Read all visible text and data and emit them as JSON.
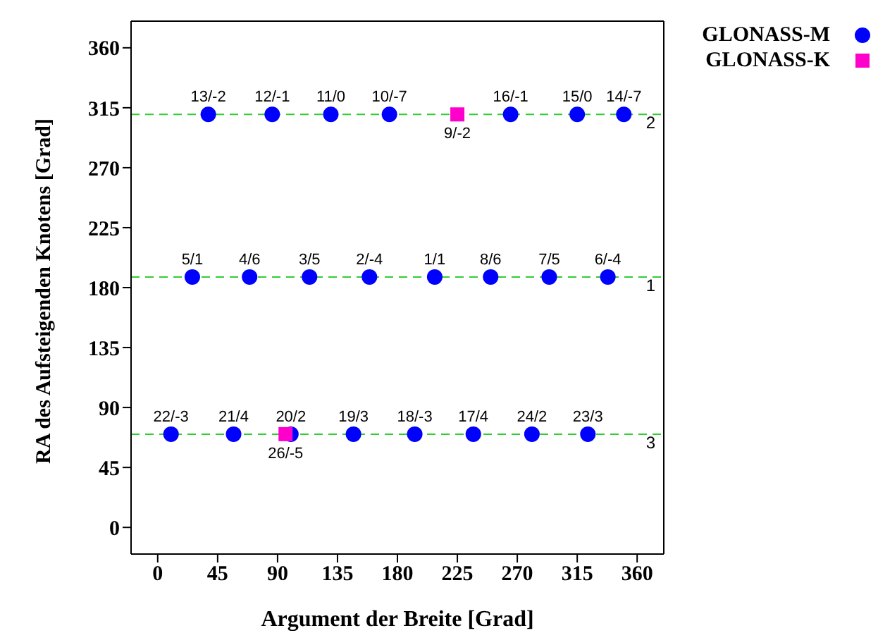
{
  "chart_data": {
    "type": "scatter",
    "xlabel": "Argument der Breite [Grad]",
    "ylabel": "RA des Aufsteigenden Knotens [Grad]",
    "xlim": [
      -20,
      380
    ],
    "ylim": [
      -20,
      380
    ],
    "xticks": [
      0,
      45,
      90,
      135,
      180,
      225,
      270,
      315,
      360
    ],
    "yticks": [
      0,
      45,
      90,
      135,
      180,
      225,
      270,
      315,
      360
    ],
    "grid": false,
    "legend": "top right",
    "marker": "circle",
    "series": [
      {
        "name": "GLONASS-M",
        "color": "#0000ff",
        "x": [
          38,
          86,
          130,
          174,
          265,
          315,
          350,
          26,
          69,
          114,
          159,
          208,
          250,
          294,
          338,
          10,
          57,
          100,
          147,
          193,
          237,
          281,
          323
        ],
        "values": [
          310,
          310,
          310,
          310,
          310,
          310,
          310,
          188,
          188,
          188,
          188,
          188,
          188,
          188,
          188,
          70,
          70,
          70,
          70,
          70,
          70,
          70,
          70
        ]
      },
      {
        "name": "GLONASS-K",
        "color": "#ff00cc",
        "marker": "square",
        "x": [
          225,
          96
        ],
        "values": [
          310,
          70
        ]
      }
    ],
    "ref_lines": [
      {
        "axis": "y",
        "value": 310,
        "color": "#33cc33",
        "line_style": "dashed"
      },
      {
        "axis": "y",
        "value": 188,
        "color": "#33cc33",
        "line_style": "dashed"
      },
      {
        "axis": "y",
        "value": 70,
        "color": "#33cc33",
        "line_style": "dashed"
      }
    ],
    "annotations": [
      {
        "text": "2",
        "y": 310
      },
      {
        "text": "1",
        "y": 188
      },
      {
        "text": "3",
        "y": 70
      },
      {
        "text": "13/-2",
        "x": 38,
        "y": 310
      },
      {
        "text": "12/-1",
        "x": 86,
        "y": 310
      },
      {
        "text": "11/0",
        "x": 130,
        "y": 310
      },
      {
        "text": "10/-7",
        "x": 174,
        "y": 310
      },
      {
        "text": "9/-2",
        "x": 225,
        "y": 310
      },
      {
        "text": "16/-1",
        "x": 265,
        "y": 310
      },
      {
        "text": "15/0",
        "x": 315,
        "y": 310
      },
      {
        "text": "14/-7",
        "x": 350,
        "y": 310
      },
      {
        "text": "5/1",
        "x": 26,
        "y": 188
      },
      {
        "text": "4/6",
        "x": 69,
        "y": 188
      },
      {
        "text": "3/5",
        "x": 114,
        "y": 188
      },
      {
        "text": "2/-4",
        "x": 159,
        "y": 188
      },
      {
        "text": "1/1",
        "x": 208,
        "y": 188
      },
      {
        "text": "8/6",
        "x": 250,
        "y": 188
      },
      {
        "text": "7/5",
        "x": 294,
        "y": 188
      },
      {
        "text": "6/-4",
        "x": 338,
        "y": 188
      },
      {
        "text": "22/-3",
        "x": 10,
        "y": 70
      },
      {
        "text": "21/4",
        "x": 57,
        "y": 70
      },
      {
        "text": "20/2",
        "x": 100,
        "y": 70
      },
      {
        "text": "26/-5",
        "x": 96,
        "y": 70
      },
      {
        "text": "19/3",
        "x": 147,
        "y": 70
      },
      {
        "text": "18/-3",
        "x": 193,
        "y": 70
      },
      {
        "text": "17/4",
        "x": 237,
        "y": 70
      },
      {
        "text": "24/2",
        "x": 281,
        "y": 70
      },
      {
        "text": "23/3",
        "x": 323,
        "y": 70
      }
    ]
  }
}
